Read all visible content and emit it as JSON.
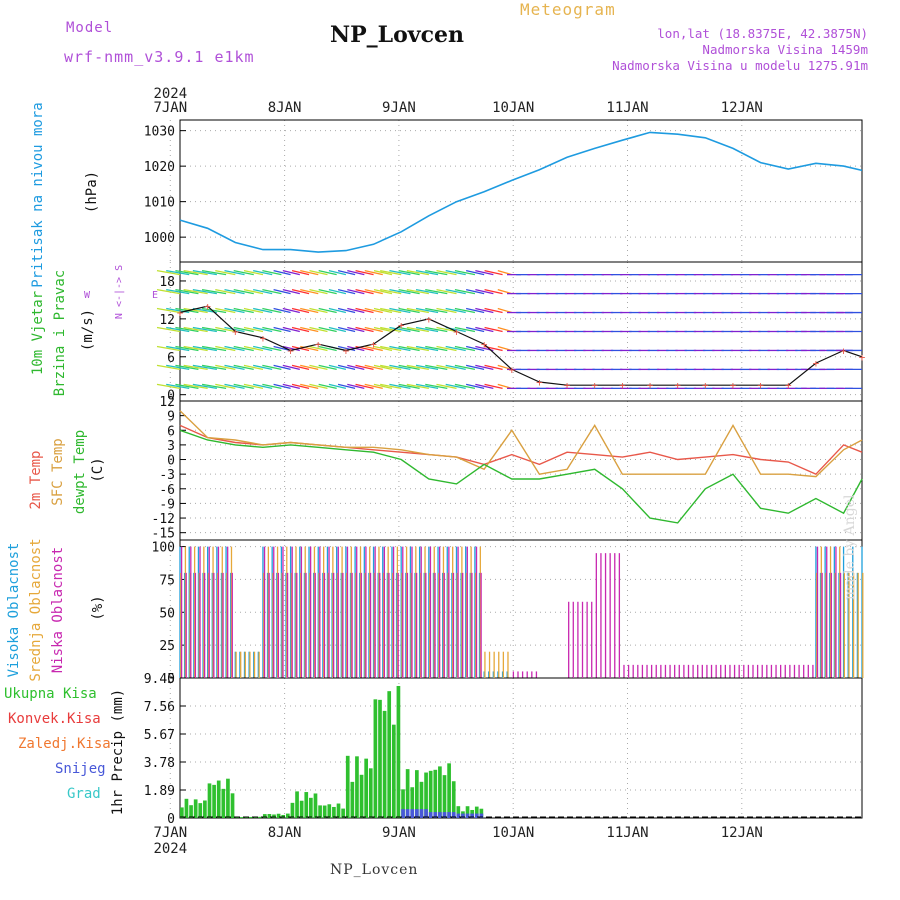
{
  "header": {
    "title": "NP_Lovcen",
    "model_label": "Model",
    "model_value": "wrf-nmm_v3.9.1 e1km",
    "meteogram_label": "Meteogram",
    "info_lines": [
      "lon,lat (18.8375E, 42.3875N)",
      "Nadmorska Visina 1459m",
      "Nadmorska Visina u modelu 1275.91m"
    ]
  },
  "footer": {
    "station": "NP_Lovcen",
    "watermark": "made by Angel"
  },
  "colors": {
    "pressure": "#1e9be0",
    "temp2m": "#e8584a",
    "sfc_temp": "#d9a040",
    "dewpoint": "#2fb82f",
    "high_cloud": "#1ea0dc",
    "mid_cloud": "#e6a83a",
    "low_cloud": "#c828b0",
    "total_precip": "#2fc02f",
    "convective_precip": "#e83c3c",
    "freezing_precip": "#f07830",
    "snow": "#4858d8",
    "graupel": "#38c8c8",
    "wind_slow": "#e02890",
    "wind_fast": "#8020d0",
    "axis_legend": "#b050d8"
  },
  "panel_labels": {
    "pressure": [
      "Pritisak na nivou mora",
      "(hPa)"
    ],
    "wind": [
      "10m Vjetar",
      "Brzina i Pravac",
      "(m/s)"
    ],
    "wind_compass": "N <-|-> S",
    "wind_compass_ew": [
      "W",
      "E"
    ],
    "temp": [
      "2m Temp",
      "SFC Temp",
      "dewpt Temp",
      "(C)"
    ],
    "cloud": [
      "Visoka Oblacnost",
      "Srednja Oblacnost",
      "Niska Oblacnost",
      "(%)"
    ],
    "precip_legend": [
      "Ukupna Kisa",
      "Konvek.Kisa",
      "Zaledj.Kisa",
      "Snijeg",
      "Grad"
    ],
    "precip_unit": "1hr Precip (mm)"
  },
  "chart_data": [
    {
      "type": "line",
      "panel": "pressure",
      "ylabel": "Pritisak na nivou mora (hPa)",
      "ylim": [
        993,
        1033
      ],
      "yticks": [
        1000,
        1010,
        1020,
        1030
      ],
      "x_day_labels": [
        "7JAN",
        "8JAN",
        "9JAN",
        "10JAN",
        "11JAN",
        "12JAN"
      ],
      "x_year_label": "2024",
      "x_hours": [
        0,
        6,
        12,
        18,
        24,
        30,
        36,
        42,
        48,
        54,
        60,
        66,
        72,
        78,
        84,
        90,
        96,
        102,
        108,
        114,
        120,
        126,
        132,
        138,
        144,
        148
      ],
      "series": [
        {
          "name": "Pritisak na nivou mora",
          "values": [
            1004.8,
            1002.5,
            998.5,
            996.5,
            996.5,
            995.8,
            996.2,
            998.0,
            1001.5,
            1006.0,
            1010.0,
            1012.8,
            1016.0,
            1019.0,
            1022.5,
            1025.0,
            1027.3,
            1029.5,
            1029.0,
            1028.0,
            1025.0,
            1021.0,
            1019.2,
            1020.8,
            1020.0,
            1018.8
          ]
        }
      ],
      "grid": true
    },
    {
      "type": "scatter",
      "panel": "wind",
      "ylabel": "10m Vjetar Brzina i Pravac (m/s)",
      "ylim": [
        -1,
        21
      ],
      "yticks": [
        0,
        6,
        12,
        18
      ],
      "x_hours": [
        0,
        6,
        12,
        18,
        24,
        30,
        36,
        42,
        48,
        54,
        60,
        66,
        72,
        78,
        84,
        90,
        96,
        102,
        108,
        114,
        120,
        126,
        132,
        138,
        144,
        148
      ],
      "series": [
        {
          "name": "10m wind speed",
          "values": [
            13,
            14,
            10,
            9,
            7,
            8,
            7,
            8,
            11,
            12,
            10,
            8,
            4,
            2,
            1.5,
            1.5,
            1.5,
            1.5,
            1.5,
            1.5,
            1.5,
            1.5,
            1.5,
            5,
            7,
            6
          ]
        }
      ],
      "grid": true
    },
    {
      "type": "line",
      "panel": "temperature",
      "ylabel": "2m Temp / SFC Temp / dewpt Temp (C)",
      "ylim": [
        -16.5,
        12
      ],
      "yticks": [
        -15,
        -12,
        -9,
        -6,
        -3,
        0,
        3,
        6,
        9,
        12
      ],
      "x_hours": [
        0,
        6,
        12,
        18,
        24,
        30,
        36,
        42,
        48,
        54,
        60,
        66,
        72,
        78,
        84,
        90,
        96,
        102,
        108,
        114,
        120,
        126,
        132,
        138,
        144,
        148
      ],
      "series": [
        {
          "name": "2m Temp",
          "values": [
            7,
            4.5,
            3.5,
            3,
            3.5,
            3,
            2.5,
            2,
            1.5,
            1,
            0.5,
            -1,
            1,
            -1,
            1.5,
            1,
            0.5,
            1.5,
            0,
            0.5,
            1,
            0,
            -0.5,
            -3,
            3,
            1.5
          ]
        },
        {
          "name": "SFC Temp",
          "values": [
            10,
            4.5,
            4,
            3,
            3.5,
            3,
            2.5,
            2.5,
            2,
            1,
            0.5,
            -2,
            6,
            -3,
            -2,
            7,
            -3,
            -3,
            -3,
            -3,
            7,
            -3,
            -3,
            -3.5,
            2,
            4
          ]
        },
        {
          "name": "dewpt Temp",
          "values": [
            6,
            4,
            3,
            2.5,
            3,
            2.5,
            2,
            1.5,
            0,
            -4,
            -5,
            -1,
            -4,
            -4,
            -3,
            -2,
            -6,
            -12,
            -13,
            -6,
            -3,
            -10,
            -11,
            -8,
            -11,
            -4
          ]
        }
      ],
      "grid": true
    },
    {
      "type": "bar",
      "panel": "cloud",
      "ylabel": "Oblacnost (%)",
      "ylim": [
        0,
        105
      ],
      "yticks": [
        0,
        25,
        50,
        75,
        100
      ],
      "x_hours": [
        0,
        6,
        12,
        18,
        24,
        30,
        36,
        42,
        48,
        54,
        60,
        66,
        72,
        78,
        84,
        90,
        96,
        102,
        108,
        114,
        120,
        126,
        132,
        138,
        144,
        148
      ],
      "series": [
        {
          "name": "Visoka Oblacnost",
          "values": [
            100,
            100,
            20,
            100,
            100,
            100,
            100,
            100,
            100,
            100,
            100,
            5,
            0,
            0,
            0,
            0,
            0,
            0,
            0,
            0,
            0,
            0,
            0,
            100,
            100,
            0
          ]
        },
        {
          "name": "Srednja Oblacnost",
          "values": [
            100,
            100,
            20,
            100,
            100,
            100,
            100,
            100,
            100,
            100,
            100,
            20,
            0,
            0,
            0,
            0,
            0,
            0,
            0,
            0,
            0,
            0,
            0,
            100,
            80,
            0
          ]
        },
        {
          "name": "Niska Oblacnost",
          "values": [
            100,
            100,
            0,
            100,
            100,
            100,
            100,
            100,
            100,
            100,
            100,
            0,
            5,
            0,
            58,
            95,
            10,
            10,
            10,
            10,
            10,
            10,
            10,
            100,
            0,
            0
          ]
        }
      ],
      "grid": true
    },
    {
      "type": "bar",
      "panel": "precipitation",
      "ylabel": "1hr Precip (mm)",
      "ylim": [
        0,
        9.45
      ],
      "yticks": [
        0,
        1.89,
        3.78,
        5.67,
        7.56,
        9.45
      ],
      "x_hours": [
        0,
        6,
        12,
        18,
        24,
        30,
        36,
        42,
        48,
        54,
        60,
        66,
        72,
        78,
        84,
        90,
        96,
        102,
        108,
        114,
        120,
        126,
        132,
        138,
        144,
        148
      ],
      "series": [
        {
          "name": "Ukupna Kisa",
          "values": [
            1.3,
            2.7,
            0.1,
            0.3,
            1.8,
            1.0,
            4.2,
            9.0,
            3.3,
            3.8,
            0.8,
            0,
            0,
            0,
            0,
            0,
            0,
            0,
            0,
            0,
            0,
            0,
            0,
            0,
            0,
            0
          ]
        },
        {
          "name": "Snijeg",
          "values": [
            0,
            0,
            0,
            0,
            0,
            0,
            0,
            0,
            0.6,
            0.4,
            0.3,
            0,
            0,
            0,
            0,
            0,
            0,
            0,
            0,
            0,
            0,
            0,
            0,
            0,
            0,
            0
          ]
        }
      ],
      "grid": true
    }
  ]
}
